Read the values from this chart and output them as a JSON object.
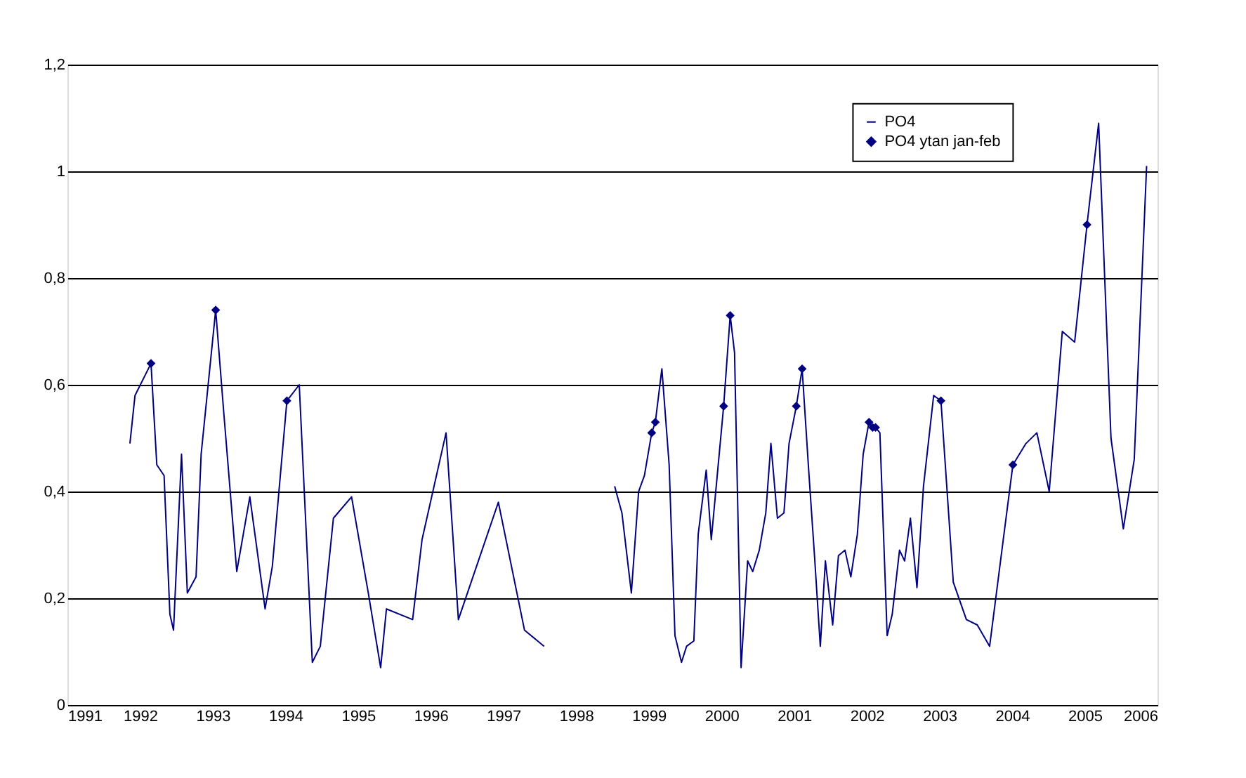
{
  "chart_data": {
    "type": "line",
    "xlim": [
      1991,
      2006
    ],
    "xticks": [
      1991,
      1992,
      1993,
      1994,
      1995,
      1996,
      1997,
      1998,
      1999,
      2000,
      2001,
      2002,
      2003,
      2004,
      2005,
      2006
    ],
    "ylim": [
      0,
      1.2
    ],
    "yticks": [
      0,
      {
        "value": 0.2,
        "label": "0,2"
      },
      {
        "value": 0.4,
        "label": "0,4"
      },
      {
        "value": 0.6,
        "label": "0,6"
      },
      {
        "value": 0.8,
        "label": "0,8"
      },
      1,
      {
        "value": 1.2,
        "label": "1,2"
      }
    ],
    "grid": "y",
    "legend": "top right",
    "series": [
      {
        "name": "PO4",
        "color": "#000080",
        "line_style": "solid",
        "marker": "none",
        "x": [
          1991.86,
          1991.93,
          1992.15,
          1992.23,
          1992.33,
          1992.41,
          1992.46,
          1992.57,
          1992.65,
          1992.77,
          1992.84,
          1993.04,
          1993.15,
          1993.33,
          1993.51,
          1993.72,
          1993.82,
          1994.02,
          1994.19,
          1994.37,
          1994.48,
          1994.66,
          1994.91,
          1995.14,
          1995.31,
          1995.39,
          1995.75,
          1995.88,
          1996.21,
          1996.38,
          1996.93,
          1997.29,
          1997.56,
          1998.0,
          1998.53,
          1998.63,
          1998.76,
          1998.86,
          1998.94,
          1999.04,
          1999.09,
          1999.18,
          1999.28,
          1999.36,
          1999.45,
          1999.52,
          1999.62,
          1999.68,
          1999.79,
          1999.86,
          2000.03,
          2000.12,
          2000.18,
          2000.27,
          2000.36,
          2000.43,
          2000.52,
          2000.61,
          2000.68,
          2000.77,
          2000.86,
          2000.93,
          2001.03,
          2001.11,
          2001.2,
          2001.28,
          2001.36,
          2001.43,
          2001.53,
          2001.61,
          2001.7,
          2001.78,
          2001.87,
          2001.95,
          2002.03,
          2002.08,
          2002.12,
          2002.18,
          2002.28,
          2002.35,
          2002.45,
          2002.52,
          2002.6,
          2002.69,
          2002.78,
          2002.92,
          2003.02,
          2003.19,
          2003.37,
          2003.52,
          2003.69,
          2003.84,
          2004.01,
          2004.19,
          2004.34,
          2004.51,
          2004.69,
          2004.86,
          2005.03,
          2005.19,
          2005.36,
          2005.53,
          2005.68,
          2005.85
        ],
        "values": [
          0.49,
          0.58,
          0.64,
          0.45,
          0.43,
          0.17,
          0.14,
          0.47,
          0.21,
          0.24,
          0.47,
          0.74,
          0.55,
          0.25,
          0.39,
          0.18,
          0.26,
          0.57,
          0.6,
          0.08,
          0.11,
          0.35,
          0.39,
          0.21,
          0.07,
          0.18,
          0.16,
          0.31,
          0.51,
          0.16,
          0.38,
          0.14,
          0.11,
          null,
          0.41,
          0.36,
          0.21,
          0.4,
          0.43,
          0.51,
          0.53,
          0.63,
          0.45,
          0.13,
          0.08,
          0.11,
          0.12,
          0.32,
          0.44,
          0.31,
          0.56,
          0.73,
          0.66,
          0.07,
          0.27,
          0.25,
          0.29,
          0.36,
          0.49,
          0.35,
          0.36,
          0.49,
          0.56,
          0.63,
          0.44,
          0.28,
          0.11,
          0.27,
          0.15,
          0.28,
          0.29,
          0.24,
          0.32,
          0.47,
          0.53,
          0.52,
          0.52,
          0.51,
          0.13,
          0.17,
          0.29,
          0.27,
          0.35,
          0.22,
          0.41,
          0.58,
          0.57,
          0.23,
          0.16,
          0.15,
          0.11,
          0.27,
          0.45,
          0.49,
          0.51,
          0.4,
          0.7,
          0.68,
          0.9,
          1.09,
          0.5,
          0.33,
          0.46,
          1.01
        ]
      },
      {
        "name": "PO4 ytan jan-feb",
        "type": "scatter",
        "color": "#000080",
        "marker": "diamond",
        "x": [
          1992.15,
          1993.04,
          1994.02,
          1999.04,
          1999.09,
          2000.03,
          2000.12,
          2001.03,
          2001.11,
          2002.03,
          2002.08,
          2002.12,
          2003.02,
          2004.01,
          2005.03
        ],
        "values": [
          0.64,
          0.74,
          0.57,
          0.51,
          0.53,
          0.56,
          0.73,
          0.56,
          0.63,
          0.53,
          0.52,
          0.52,
          0.57,
          0.45,
          0.9
        ]
      }
    ]
  }
}
